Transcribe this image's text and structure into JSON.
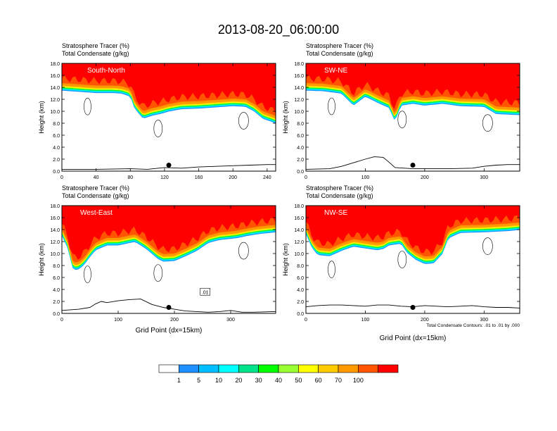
{
  "title": "2013-08-20_06:00:00",
  "chart_data": [
    {
      "type": "heatmap",
      "name": "south-north",
      "subtitle_line1": "Stratosphere Tracer   (%)",
      "subtitle_line2": "Total Condensate   (g/kg)",
      "panel_label": "South-North",
      "ylabel": "Height (km)",
      "xlabel": "",
      "xlim": [
        0,
        250
      ],
      "ylim": [
        0,
        18
      ],
      "x_ticks": [
        0,
        40,
        80,
        120,
        160,
        200,
        240
      ],
      "y_ticks": [
        "0.0",
        "2.0",
        "4.0",
        "6.0",
        "8.0",
        "10.0",
        "12.0",
        "14.0",
        "16.0",
        "18.0"
      ],
      "tracer_boundary_km": [
        [
          0,
          14.5
        ],
        [
          20,
          14.3
        ],
        [
          40,
          14.1
        ],
        [
          60,
          14.1
        ],
        [
          70,
          14.0
        ],
        [
          80,
          13.5
        ],
        [
          85,
          11.5
        ],
        [
          95,
          9.8
        ],
        [
          105,
          10.3
        ],
        [
          115,
          10.6
        ],
        [
          125,
          11.0
        ],
        [
          140,
          11.4
        ],
        [
          160,
          11.5
        ],
        [
          180,
          11.7
        ],
        [
          200,
          11.9
        ],
        [
          215,
          11.8
        ],
        [
          225,
          11.0
        ],
        [
          235,
          9.8
        ],
        [
          245,
          9.3
        ],
        [
          250,
          9.0
        ]
      ],
      "terrain_km": [
        [
          0,
          0.3
        ],
        [
          40,
          0.3
        ],
        [
          80,
          0.4
        ],
        [
          100,
          0.3
        ],
        [
          120,
          0.6
        ],
        [
          140,
          0.5
        ],
        [
          160,
          0.7
        ],
        [
          180,
          0.8
        ],
        [
          200,
          0.9
        ],
        [
          220,
          1.0
        ],
        [
          240,
          1.1
        ],
        [
          250,
          1.1
        ]
      ],
      "marker_x": 125
    },
    {
      "type": "heatmap",
      "name": "sw-ne",
      "subtitle_line1": "Stratosphere Tracer   (%)",
      "subtitle_line2": "Total Condensate   (g/kg)",
      "panel_label": "SW-NE",
      "ylabel": "Height (km)",
      "xlabel": "",
      "xlim": [
        0,
        360
      ],
      "ylim": [
        0,
        18
      ],
      "x_ticks": [
        0,
        100,
        200,
        300
      ],
      "y_ticks": [
        "0.0",
        "2.0",
        "4.0",
        "6.0",
        "8.0",
        "10.0",
        "12.0",
        "14.0",
        "16.0",
        "18.0"
      ],
      "tracer_boundary_km": [
        [
          0,
          14.5
        ],
        [
          30,
          14.4
        ],
        [
          60,
          14.0
        ],
        [
          80,
          12.0
        ],
        [
          100,
          13.5
        ],
        [
          120,
          12.5
        ],
        [
          140,
          11.6
        ],
        [
          150,
          9.3
        ],
        [
          160,
          12.0
        ],
        [
          180,
          12.3
        ],
        [
          200,
          12.0
        ],
        [
          230,
          12.3
        ],
        [
          260,
          11.9
        ],
        [
          300,
          11.8
        ],
        [
          320,
          10.6
        ],
        [
          340,
          10.5
        ],
        [
          360,
          10.4
        ]
      ],
      "terrain_km": [
        [
          0,
          0.3
        ],
        [
          40,
          0.4
        ],
        [
          60,
          0.8
        ],
        [
          80,
          1.4
        ],
        [
          100,
          2.0
        ],
        [
          115,
          2.4
        ],
        [
          130,
          2.3
        ],
        [
          140,
          1.5
        ],
        [
          150,
          0.6
        ],
        [
          180,
          0.4
        ],
        [
          240,
          0.4
        ],
        [
          280,
          0.5
        ],
        [
          300,
          0.8
        ],
        [
          320,
          1.0
        ],
        [
          340,
          1.1
        ],
        [
          360,
          1.1
        ]
      ],
      "marker_x": 180
    },
    {
      "type": "heatmap",
      "name": "west-east",
      "subtitle_line1": "Stratosphere Tracer   (%)",
      "subtitle_line2": "Total Condensate   (g/kg)",
      "panel_label": "West-East",
      "ylabel": "Height (km)",
      "xlabel": "Grid Point (dx=15km)",
      "xlim": [
        0,
        380
      ],
      "ylim": [
        0,
        18
      ],
      "x_ticks": [
        0,
        100,
        200,
        300
      ],
      "y_ticks": [
        "0.0",
        "2.0",
        "4.0",
        "6.0",
        "8.0",
        "10.0",
        "12.0",
        "14.0",
        "16.0",
        "18.0"
      ],
      "tracer_boundary_km": [
        [
          0,
          14.0
        ],
        [
          10,
          12.0
        ],
        [
          20,
          8.3
        ],
        [
          30,
          8.4
        ],
        [
          40,
          9.2
        ],
        [
          50,
          10.5
        ],
        [
          60,
          11.6
        ],
        [
          80,
          12.4
        ],
        [
          100,
          12.4
        ],
        [
          130,
          13.0
        ],
        [
          150,
          11.8
        ],
        [
          170,
          10.2
        ],
        [
          180,
          9.7
        ],
        [
          200,
          9.8
        ],
        [
          220,
          10.6
        ],
        [
          240,
          11.5
        ],
        [
          260,
          12.8
        ],
        [
          280,
          13.3
        ],
        [
          310,
          13.6
        ],
        [
          330,
          14.0
        ],
        [
          350,
          14.3
        ],
        [
          380,
          14.6
        ]
      ],
      "terrain_km": [
        [
          0,
          0.5
        ],
        [
          30,
          0.7
        ],
        [
          50,
          1.0
        ],
        [
          60,
          1.6
        ],
        [
          70,
          2.0
        ],
        [
          80,
          1.8
        ],
        [
          100,
          2.1
        ],
        [
          120,
          2.3
        ],
        [
          140,
          2.4
        ],
        [
          160,
          1.5
        ],
        [
          180,
          1.0
        ],
        [
          200,
          0.7
        ],
        [
          220,
          0.4
        ],
        [
          240,
          0.3
        ],
        [
          260,
          0.2
        ],
        [
          280,
          0.3
        ],
        [
          300,
          0.5
        ],
        [
          320,
          0.2
        ],
        [
          340,
          0.2
        ],
        [
          380,
          0.3
        ]
      ],
      "marker_x": 190,
      "contour_label": ".01"
    },
    {
      "type": "heatmap",
      "name": "nw-se",
      "subtitle_line1": "Stratosphere Tracer   (%)",
      "subtitle_line2": "Total Condensate   (g/kg)",
      "panel_label": "NW-SE",
      "ylabel": "Height (km)",
      "xlabel": "Grid Point (dx=15km)",
      "xlim": [
        0,
        360
      ],
      "ylim": [
        0,
        18
      ],
      "x_ticks": [
        0,
        100,
        200,
        300
      ],
      "y_ticks": [
        "0.0",
        "2.0",
        "4.0",
        "6.0",
        "8.0",
        "10.0",
        "12.0",
        "14.0",
        "16.0",
        "18.0"
      ],
      "tracer_boundary_km": [
        [
          0,
          14.3
        ],
        [
          10,
          12.0
        ],
        [
          20,
          10.8
        ],
        [
          40,
          10.6
        ],
        [
          60,
          11.5
        ],
        [
          80,
          12.2
        ],
        [
          100,
          11.9
        ],
        [
          120,
          11.6
        ],
        [
          130,
          11.8
        ],
        [
          140,
          12.4
        ],
        [
          160,
          12.7
        ],
        [
          170,
          11.2
        ],
        [
          185,
          10.0
        ],
        [
          200,
          9.3
        ],
        [
          215,
          9.4
        ],
        [
          230,
          11.0
        ],
        [
          240,
          13.6
        ],
        [
          260,
          14.5
        ],
        [
          300,
          14.6
        ],
        [
          340,
          14.8
        ],
        [
          360,
          15.0
        ]
      ],
      "terrain_km": [
        [
          0,
          1.1
        ],
        [
          20,
          1.3
        ],
        [
          40,
          1.4
        ],
        [
          60,
          1.4
        ],
        [
          80,
          1.3
        ],
        [
          100,
          1.2
        ],
        [
          120,
          1.4
        ],
        [
          140,
          1.4
        ],
        [
          160,
          1.2
        ],
        [
          180,
          1.1
        ],
        [
          200,
          1.3
        ],
        [
          220,
          1.2
        ],
        [
          240,
          1.1
        ],
        [
          260,
          1.2
        ],
        [
          280,
          1.3
        ],
        [
          300,
          1.1
        ],
        [
          320,
          1.0
        ],
        [
          340,
          1.0
        ],
        [
          360,
          0.9
        ]
      ],
      "marker_x": 180,
      "footnote": "Total Condensate Contours: .01 to .01 by .000"
    }
  ],
  "colorbar": {
    "labels": [
      "1",
      "5",
      "10",
      "20",
      "30",
      "40",
      "50",
      "60",
      "70",
      "100"
    ],
    "colors": [
      "#ffffff",
      "#1e90ff",
      "#00bfff",
      "#00ffff",
      "#00e38a",
      "#00ff00",
      "#9aff30",
      "#ffff00",
      "#ffcc00",
      "#ff9900",
      "#ff5500",
      "#ff0000"
    ]
  }
}
